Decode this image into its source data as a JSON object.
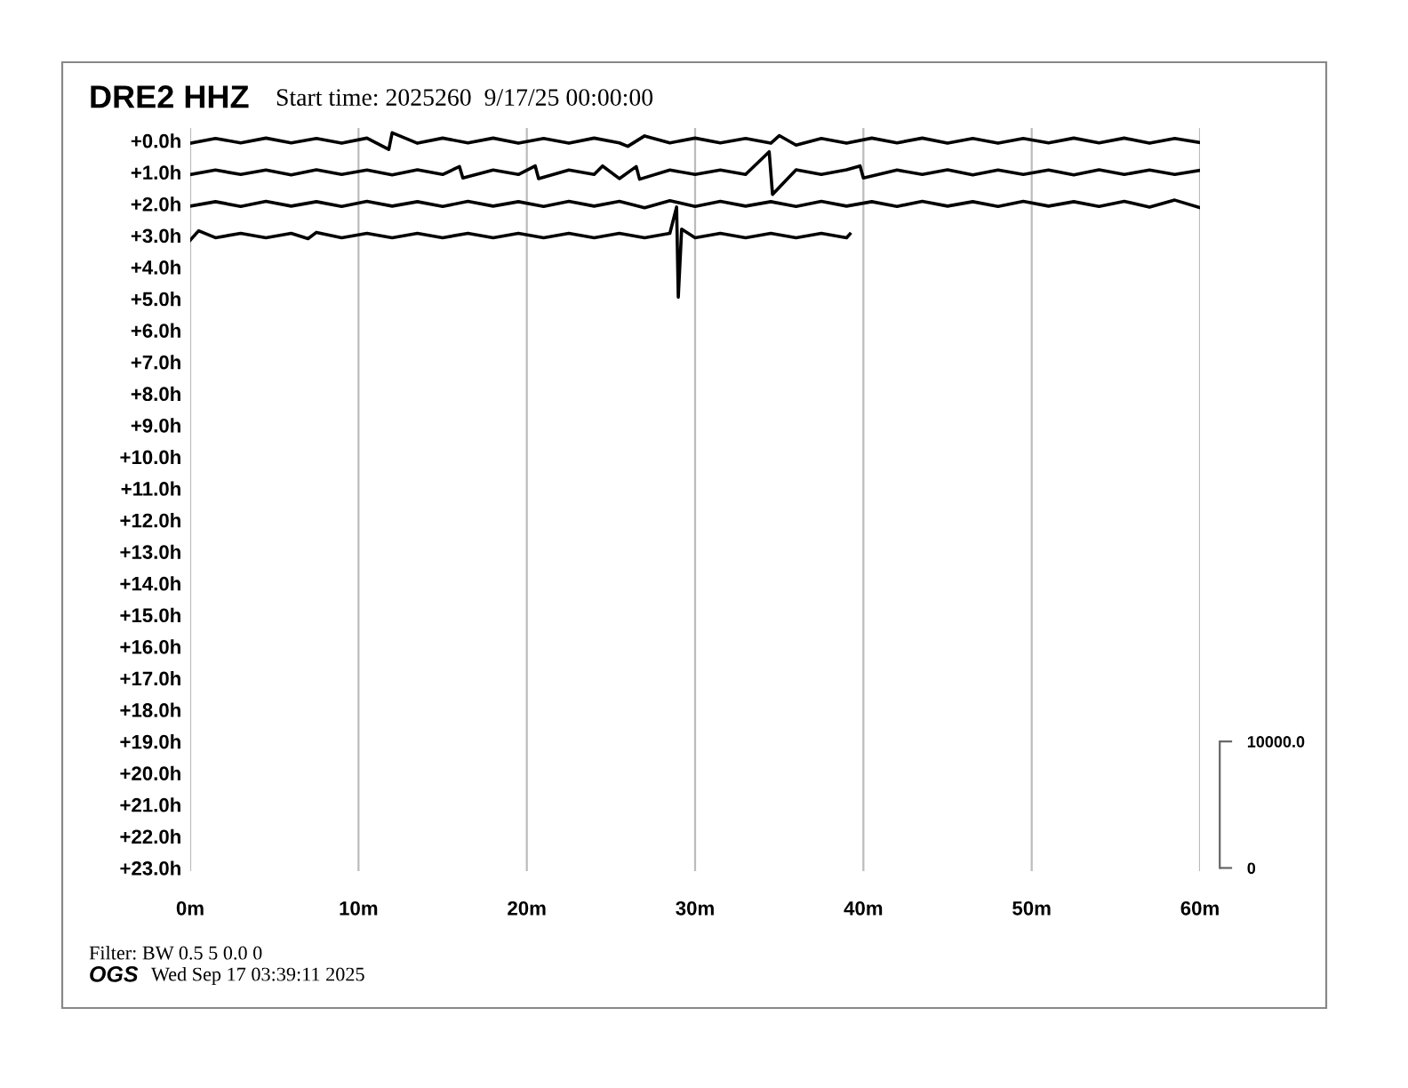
{
  "chart_data": {
    "type": "line",
    "title": "DRE2 HHZ",
    "subtitle": "Start time: 2025260  9/17/25 00:00:00",
    "annotations": [
      "Filter: BW 0.5 5 0.0 0",
      "OGS",
      "Wed Sep 17 03:39:11 2025"
    ],
    "xlim": [
      0,
      60
    ],
    "xticks": [
      {
        "value": 0,
        "label": "0m"
      },
      {
        "value": 10,
        "label": "10m"
      },
      {
        "value": 20,
        "label": "20m"
      },
      {
        "value": 30,
        "label": "30m"
      },
      {
        "value": 40,
        "label": "40m"
      },
      {
        "value": 50,
        "label": "50m"
      },
      {
        "value": 60,
        "label": "60m"
      }
    ],
    "ylim": [
      23.1,
      -0.4
    ],
    "yticks": [
      {
        "value": 0,
        "label": "+0.0h"
      },
      {
        "value": 1,
        "label": "+1.0h"
      },
      {
        "value": 2,
        "label": "+2.0h"
      },
      {
        "value": 3,
        "label": "+3.0h"
      },
      {
        "value": 4,
        "label": "+4.0h"
      },
      {
        "value": 5,
        "label": "+5.0h"
      },
      {
        "value": 6,
        "label": "+6.0h"
      },
      {
        "value": 7,
        "label": "+7.0h"
      },
      {
        "value": 8,
        "label": "+8.0h"
      },
      {
        "value": 9,
        "label": "+9.0h"
      },
      {
        "value": 10,
        "label": "+10.0h"
      },
      {
        "value": 11,
        "label": "+11.0h"
      },
      {
        "value": 12,
        "label": "+12.0h"
      },
      {
        "value": 13,
        "label": "+13.0h"
      },
      {
        "value": 14,
        "label": "+14.0h"
      },
      {
        "value": 15,
        "label": "+15.0h"
      },
      {
        "value": 16,
        "label": "+16.0h"
      },
      {
        "value": 17,
        "label": "+17.0h"
      },
      {
        "value": 18,
        "label": "+18.0h"
      },
      {
        "value": 19,
        "label": "+19.0h"
      },
      {
        "value": 20,
        "label": "+20.0h"
      },
      {
        "value": 21,
        "label": "+21.0h"
      },
      {
        "value": 22,
        "label": "+22.0h"
      },
      {
        "value": 23,
        "label": "+23.0h"
      }
    ],
    "y2lim": [
      -250,
      58500
    ],
    "y2ticks": [
      {
        "value": 0,
        "label": "0"
      },
      {
        "value": 10000,
        "label": "10000.0"
      }
    ],
    "grid": "x",
    "legend": false,
    "marker": "none",
    "line_style": "solid",
    "series": [
      {
        "color": "#000000",
        "x": [
          0,
          1.5,
          3,
          4.5,
          6,
          7.5,
          9,
          10.5,
          11.8,
          12,
          13.5,
          15,
          16.5,
          18,
          19.5,
          21,
          22.5,
          24,
          25.5,
          26,
          27,
          28.5,
          30,
          31.5,
          33,
          34.5,
          35,
          36,
          37.5,
          39,
          40.5,
          42,
          43.5,
          45,
          46.5,
          48,
          49.5,
          51,
          52.5,
          54,
          55.5,
          57,
          58.5,
          60
        ],
        "values": [
          0.08,
          -0.07,
          0.07,
          -0.08,
          0.07,
          -0.07,
          0.08,
          -0.08,
          0.28,
          -0.25,
          0.08,
          -0.08,
          0.07,
          -0.08,
          0.08,
          -0.07,
          0.08,
          -0.08,
          0.07,
          0.18,
          -0.15,
          0.07,
          -0.08,
          0.07,
          -0.07,
          0.08,
          -0.16,
          0.14,
          -0.07,
          0.08,
          -0.08,
          0.07,
          -0.08,
          0.08,
          -0.07,
          0.08,
          -0.07,
          0.07,
          -0.08,
          0.07,
          -0.08,
          0.08,
          -0.07,
          0.06
        ]
      },
      {
        "color": "#000000",
        "x": [
          0,
          1.5,
          3,
          4.5,
          6,
          7.5,
          9,
          10.5,
          12,
          13.5,
          15,
          16,
          16.2,
          18,
          19.5,
          20.5,
          20.7,
          22.5,
          24,
          24.5,
          25.5,
          26.5,
          26.7,
          28.5,
          30,
          31.5,
          33,
          34.4,
          34.6,
          36,
          37.5,
          39,
          39.8,
          40,
          42,
          43.5,
          45,
          46.5,
          48,
          49.5,
          51,
          52.5,
          54,
          55.5,
          57,
          58.5,
          60
        ],
        "values": [
          1.07,
          0.93,
          1.07,
          0.93,
          1.08,
          0.92,
          1.07,
          0.93,
          1.08,
          0.92,
          1.07,
          0.82,
          1.18,
          0.93,
          1.07,
          0.8,
          1.2,
          0.93,
          1.07,
          0.8,
          1.2,
          0.82,
          1.22,
          0.93,
          1.07,
          0.93,
          1.07,
          0.35,
          1.7,
          0.92,
          1.07,
          0.92,
          0.8,
          1.18,
          0.93,
          1.07,
          0.92,
          1.08,
          0.93,
          1.07,
          0.93,
          1.08,
          0.92,
          1.07,
          0.93,
          1.07,
          0.94
        ]
      },
      {
        "color": "#000000",
        "x": [
          0,
          1.5,
          3,
          4.5,
          6,
          7.5,
          9,
          10.5,
          12,
          13.5,
          15,
          16.5,
          18,
          19.5,
          21,
          22.5,
          24,
          25.5,
          27,
          28.5,
          30,
          31.5,
          33,
          34.5,
          36,
          37.5,
          39,
          40.5,
          42,
          43.5,
          45,
          46.5,
          48,
          49.5,
          51,
          52.5,
          54,
          55.5,
          57,
          58.5,
          60
        ],
        "values": [
          2.07,
          1.93,
          2.08,
          1.92,
          2.07,
          1.93,
          2.08,
          1.92,
          2.07,
          1.93,
          2.08,
          1.92,
          2.07,
          1.93,
          2.08,
          1.92,
          2.07,
          1.92,
          2.12,
          1.9,
          2.08,
          1.92,
          2.07,
          1.93,
          2.08,
          1.92,
          2.07,
          1.93,
          2.08,
          1.92,
          2.07,
          1.93,
          2.08,
          1.92,
          2.07,
          1.93,
          2.08,
          1.92,
          2.1,
          1.88,
          2.12
        ]
      },
      {
        "color": "#000000",
        "x": [
          0,
          0.5,
          1.5,
          3,
          4.5,
          6,
          7,
          7.5,
          9,
          10.5,
          12,
          13.5,
          15,
          16.5,
          18,
          19.5,
          21,
          22.5,
          24,
          25.5,
          27,
          28.5,
          28.9,
          29.0,
          29.2,
          30,
          31.5,
          33,
          34.5,
          36,
          37.5,
          39,
          39.2
        ],
        "values": [
          3.15,
          2.85,
          3.07,
          2.93,
          3.07,
          2.93,
          3.1,
          2.9,
          3.07,
          2.93,
          3.07,
          2.93,
          3.07,
          2.93,
          3.07,
          2.93,
          3.07,
          2.93,
          3.07,
          2.93,
          3.07,
          2.93,
          2.1,
          4.95,
          2.8,
          3.07,
          2.93,
          3.07,
          2.93,
          3.07,
          2.93,
          3.07,
          2.95
        ]
      }
    ]
  }
}
